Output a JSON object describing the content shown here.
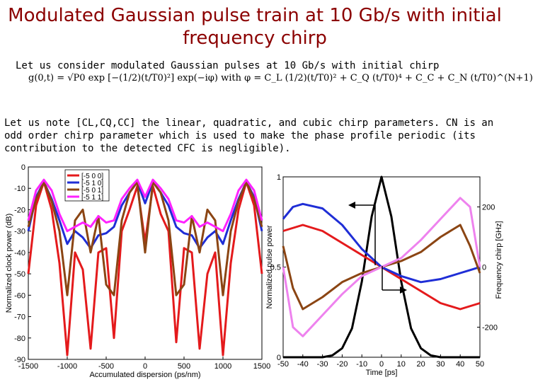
{
  "slide": {
    "title": "Modulated Gaussian pulse train at 10 Gb/s with initial frequency chirp",
    "intro": "Let us consider modulated Gaussian pulses at 10 Gb/s with initial chirp",
    "formula": {
      "lhs": "g(0,t) = √P0 exp",
      "gauss_term": "−(1/2)(t/T0)²",
      "mid": "exp(−iφ)   with   φ =",
      "phi_terms": "C_L (1/2)(t/T0)² + C_Q (t/T0)⁴ + C_C + C_N (t/T0)^(N+1)"
    },
    "note": "Let us note [CL,CQ,CC] the linear, quadratic, and cubic chirp parameters. CN is an odd order chirp parameter which is used to make the phase profile periodic (its contribution to the detected CFC is negligible)."
  },
  "colors": {
    "title": "#8b0000",
    "red": "#e41a1c",
    "blue": "#1f2ed6",
    "brown": "#8b4513",
    "magenta": "#ff22ff",
    "violet": "#ee82ee",
    "black": "#000000"
  },
  "chart_data": [
    {
      "type": "line",
      "xlabel": "Accumulated dispersion (ps/nm)",
      "ylabel": "Normalized clock power (dB)",
      "xlim": [
        -1500,
        1500
      ],
      "ylim": [
        -90,
        0
      ],
      "xticks": [
        -1500,
        -1000,
        -500,
        0,
        500,
        1000,
        1500
      ],
      "yticks": [
        0,
        -10,
        -20,
        -30,
        -40,
        -50,
        -60,
        -70,
        -80,
        -90
      ],
      "legend_position": "top-left",
      "series": [
        {
          "name": "[-5 0 0]",
          "color": "red",
          "x": [
            -1500,
            -1400,
            -1300,
            -1200,
            -1100,
            -1000,
            -900,
            -800,
            -700,
            -600,
            -500,
            -400,
            -300,
            -200,
            -100,
            0,
            100,
            200,
            300,
            400,
            500,
            600,
            700,
            800,
            900,
            1000,
            1100,
            1200,
            1300,
            1400,
            1500
          ],
          "y": [
            -50,
            -18,
            -7,
            -20,
            -45,
            -88,
            -40,
            -48,
            -85,
            -40,
            -38,
            -80,
            -30,
            -20,
            -9,
            -35,
            -9,
            -22,
            -30,
            -82,
            -38,
            -40,
            -85,
            -50,
            -40,
            -88,
            -45,
            -20,
            -7,
            -18,
            -50
          ]
        },
        {
          "name": "[-5 1 0]",
          "color": "blue",
          "x": [
            -1500,
            -1400,
            -1300,
            -1200,
            -1100,
            -1000,
            -900,
            -800,
            -700,
            -600,
            -500,
            -400,
            -300,
            -200,
            -100,
            0,
            100,
            200,
            300,
            400,
            500,
            600,
            700,
            800,
            900,
            1000,
            1100,
            1200,
            1300,
            1400,
            1500
          ],
          "y": [
            -30,
            -14,
            -7,
            -15,
            -25,
            -36,
            -30,
            -33,
            -38,
            -32,
            -31,
            -28,
            -18,
            -12,
            -7,
            -17,
            -7,
            -12,
            -18,
            -28,
            -31,
            -32,
            -38,
            -33,
            -30,
            -36,
            -25,
            -15,
            -7,
            -14,
            -30
          ]
        },
        {
          "name": "[-5 0 1]",
          "color": "brown",
          "x": [
            -1500,
            -1400,
            -1300,
            -1200,
            -1100,
            -1000,
            -900,
            -800,
            -700,
            -600,
            -500,
            -400,
            -300,
            -200,
            -100,
            0,
            100,
            200,
            300,
            400,
            500,
            600,
            700,
            800,
            900,
            1000,
            1100,
            1200,
            1300,
            1400,
            1500
          ],
          "y": [
            -28,
            -15,
            -7,
            -16,
            -30,
            -60,
            -25,
            -20,
            -40,
            -23,
            -55,
            -60,
            -25,
            -12,
            -7,
            -40,
            -7,
            -12,
            -25,
            -60,
            -55,
            -23,
            -40,
            -20,
            -25,
            -60,
            -30,
            -16,
            -7,
            -15,
            -28
          ]
        },
        {
          "name": "[-5 1 1]",
          "color": "magenta",
          "x": [
            -1500,
            -1400,
            -1300,
            -1200,
            -1100,
            -1000,
            -900,
            -800,
            -700,
            -600,
            -500,
            -400,
            -300,
            -200,
            -100,
            0,
            100,
            200,
            300,
            400,
            500,
            600,
            700,
            800,
            900,
            1000,
            1100,
            1200,
            1300,
            1400,
            1500
          ],
          "y": [
            -25,
            -11,
            -6,
            -11,
            -22,
            -30,
            -28,
            -26,
            -28,
            -23,
            -26,
            -25,
            -15,
            -10,
            -6,
            -14,
            -6,
            -10,
            -15,
            -25,
            -26,
            -23,
            -28,
            -26,
            -28,
            -30,
            -22,
            -11,
            -6,
            -11,
            -25
          ]
        }
      ]
    },
    {
      "type": "line",
      "xlabel": "Time [ps]",
      "ylabel": "Normalized pulse power",
      "y2label": "Frequency chirp [GHz]",
      "xlim": [
        -50,
        50
      ],
      "ylim": [
        0,
        1
      ],
      "y2lim": [
        -300,
        300
      ],
      "xticks": [
        -50,
        -40,
        -30,
        -20,
        -10,
        0,
        10,
        20,
        30,
        40,
        50
      ],
      "yticks": [
        0,
        0.5,
        1
      ],
      "y2ticks": [
        200,
        0,
        -200
      ],
      "series": [
        {
          "color": "black",
          "axis": "left",
          "x": [
            -50,
            -45,
            -40,
            -35,
            -30,
            -25,
            -20,
            -15,
            -10,
            -5,
            0,
            5,
            10,
            15,
            20,
            25,
            30,
            35,
            40,
            45,
            50
          ],
          "y": [
            0,
            0,
            0,
            0,
            0,
            0.01,
            0.05,
            0.16,
            0.42,
            0.78,
            1.0,
            0.78,
            0.42,
            0.16,
            0.05,
            0.01,
            0,
            0,
            0,
            0,
            0
          ]
        },
        {
          "color": "red",
          "axis": "right",
          "x": [
            -50,
            -40,
            -30,
            -20,
            -10,
            0,
            10,
            20,
            30,
            40,
            50
          ],
          "y": [
            120,
            140,
            120,
            80,
            40,
            0,
            -40,
            -80,
            -120,
            -140,
            -120
          ]
        },
        {
          "color": "blue",
          "axis": "right",
          "x": [
            -50,
            -45,
            -40,
            -30,
            -20,
            -10,
            0,
            10,
            20,
            30,
            40,
            45,
            50
          ],
          "y": [
            160,
            200,
            210,
            195,
            140,
            60,
            0,
            -30,
            -50,
            -40,
            -20,
            -10,
            0
          ]
        },
        {
          "color": "brown",
          "axis": "right",
          "x": [
            -50,
            -45,
            -40,
            -30,
            -20,
            -10,
            0,
            10,
            20,
            30,
            40,
            45,
            50
          ],
          "y": [
            70,
            -70,
            -140,
            -100,
            -50,
            -20,
            0,
            20,
            50,
            100,
            140,
            70,
            -20
          ]
        },
        {
          "color": "violet",
          "axis": "right",
          "x": [
            -50,
            -45,
            -40,
            -30,
            -20,
            -10,
            0,
            10,
            20,
            30,
            40,
            45,
            50
          ],
          "y": [
            0,
            -200,
            -230,
            -160,
            -90,
            -30,
            0,
            30,
            90,
            160,
            230,
            200,
            0
          ]
        }
      ]
    }
  ]
}
